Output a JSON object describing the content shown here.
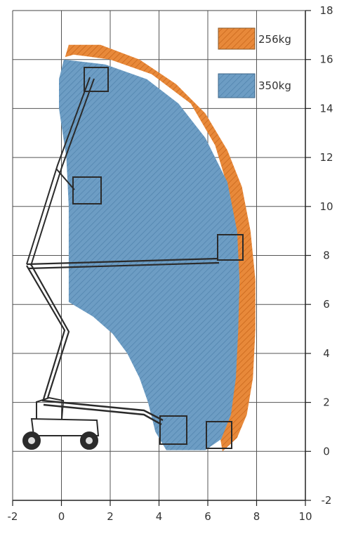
{
  "chart_data": {
    "type": "area",
    "title": "",
    "xlabel": "",
    "ylabel": "",
    "xlim": [
      -2,
      10
    ],
    "ylim": [
      -2,
      18
    ],
    "x_ticks": [
      "-2",
      "0",
      "2",
      "4",
      "6",
      "8",
      "10"
    ],
    "y_ticks": [
      "-2",
      "0",
      "2",
      "4",
      "6",
      "8",
      "10",
      "12",
      "14",
      "16",
      "18"
    ],
    "grid": true,
    "legend_position": "top-right",
    "series": [
      {
        "name": "256kg",
        "color": "#e8893a",
        "envelope": [
          [
            0.3,
            16.6
          ],
          [
            1.6,
            16.6
          ],
          [
            3.2,
            16.0
          ],
          [
            4.7,
            15.0
          ],
          [
            5.9,
            13.8
          ],
          [
            6.8,
            12.3
          ],
          [
            7.4,
            10.8
          ],
          [
            7.75,
            9.0
          ],
          [
            7.95,
            7.0
          ],
          [
            7.95,
            5.0
          ],
          [
            7.85,
            3.0
          ],
          [
            7.6,
            1.5
          ],
          [
            7.2,
            0.55
          ],
          [
            6.6,
            0.0
          ],
          [
            6.5,
            0.6
          ],
          [
            6.9,
            1.5
          ],
          [
            7.1,
            3.0
          ],
          [
            7.2,
            5.0
          ],
          [
            7.3,
            7.0
          ],
          [
            7.2,
            8.5
          ],
          [
            6.9,
            10.5
          ],
          [
            6.3,
            12.5
          ],
          [
            5.3,
            14.2
          ],
          [
            3.7,
            15.4
          ],
          [
            2.0,
            16.0
          ],
          [
            0.5,
            16.2
          ],
          [
            0.15,
            16.1
          ]
        ]
      },
      {
        "name": "350kg",
        "color": "#6d9dc4",
        "envelope": [
          [
            0.1,
            16.0
          ],
          [
            1.8,
            15.8
          ],
          [
            3.5,
            15.2
          ],
          [
            4.8,
            14.2
          ],
          [
            5.9,
            12.8
          ],
          [
            6.8,
            11.0
          ],
          [
            7.2,
            9.0
          ],
          [
            7.3,
            7.0
          ],
          [
            7.25,
            5.0
          ],
          [
            7.15,
            3.0
          ],
          [
            6.95,
            1.5
          ],
          [
            6.55,
            0.5
          ],
          [
            5.9,
            0.05
          ],
          [
            4.3,
            0.05
          ],
          [
            3.85,
            0.8
          ],
          [
            3.55,
            2.0
          ],
          [
            3.2,
            3.0
          ],
          [
            2.7,
            4.0
          ],
          [
            2.1,
            4.8
          ],
          [
            1.3,
            5.5
          ],
          [
            0.3,
            6.1
          ],
          [
            0.3,
            10.0
          ],
          [
            0.2,
            12.0
          ],
          [
            -0.1,
            14.0
          ],
          [
            -0.1,
            15.2
          ]
        ]
      }
    ]
  }
}
